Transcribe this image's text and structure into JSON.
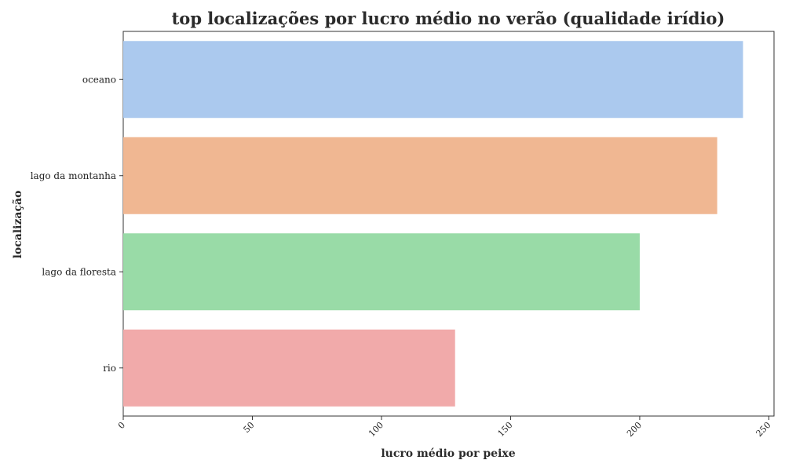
{
  "chart_data": {
    "type": "bar",
    "orientation": "horizontal",
    "title": "top localizações por lucro médio no verão (qualidade irídio)",
    "xlabel": "lucro médio por peixe",
    "ylabel": "localização",
    "categories": [
      "oceano",
      "lago da montanha",
      "lago da floresta",
      "rio"
    ],
    "values": [
      240,
      230,
      200,
      128.5
    ],
    "colors": [
      "#abc9ee",
      "#f0b792",
      "#99dba7",
      "#f1aaaa"
    ],
    "xlim": [
      0,
      252
    ],
    "xticks": [
      0,
      50,
      100,
      150,
      200,
      250
    ],
    "xtick_labels": [
      "0",
      "50",
      "100",
      "150",
      "200",
      "250"
    ],
    "grid": false,
    "legend": "none"
  }
}
